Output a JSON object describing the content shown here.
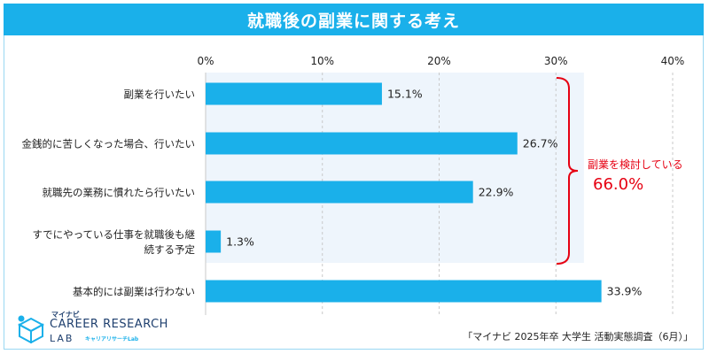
{
  "title": "就職後の副業に関する考え",
  "chart_data": {
    "type": "bar",
    "orientation": "horizontal",
    "categories": [
      "副業を行いたい",
      "金銭的に苦しくなった場合、行いたい",
      "就職先の業務に慣れたら行いたい",
      "すでにやっている仕事を就職後も継続する予定",
      "基本的には副業は行わない"
    ],
    "category_lines": [
      [
        "副業を行いたい"
      ],
      [
        "金銭的に苦しくなった場合、行いたい"
      ],
      [
        "就職先の業務に慣れたら行いたい"
      ],
      [
        "すでにやっている仕事を就職後も継",
        "続する予定"
      ],
      [
        "基本的には副業は行わない"
      ]
    ],
    "values": [
      15.1,
      26.7,
      22.9,
      1.3,
      33.9
    ],
    "value_labels": [
      "15.1%",
      "26.7%",
      "22.9%",
      "1.3%",
      "33.9%"
    ],
    "x_ticks": [
      0,
      10,
      20,
      30,
      40
    ],
    "x_tick_labels": [
      "0%",
      "10%",
      "20%",
      "30%",
      "40%"
    ],
    "xlim": [
      0,
      40
    ],
    "grid": true,
    "bar_color": "#1ab0ea",
    "highlight_color": "#eef5fc",
    "annotation": {
      "label": "副業を検討している",
      "value": "66.0%",
      "covers": [
        0,
        3
      ],
      "color": "#e60012"
    }
  },
  "logo": {
    "small": "マイナビ",
    "main": "CAREER RESEARCH",
    "lab": "LAB",
    "sub": "キャリアリサーチLab"
  },
  "source": "「マイナビ 2025年卒 大学生 活動実態調査（6月）」"
}
